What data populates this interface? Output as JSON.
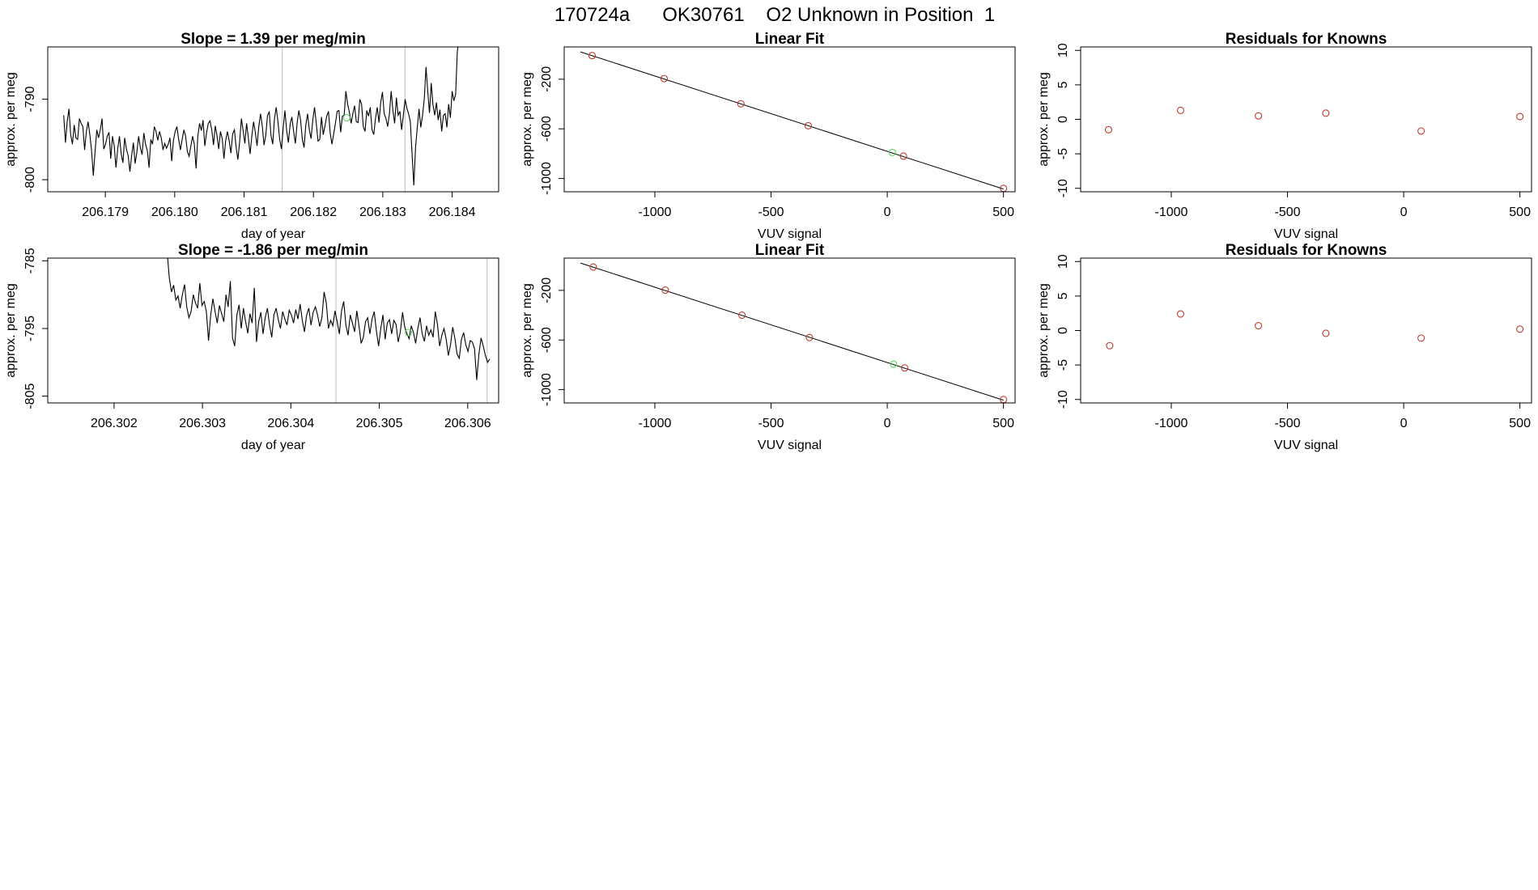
{
  "figure": {
    "title": "170724a      OK30761    O2 Unknown in Position  1"
  },
  "chart_data": [
    {
      "id": "p1",
      "type": "line",
      "title": "Slope =  1.39  per meg/min",
      "xlabel": "day of year",
      "ylabel": "approx. per meg",
      "xlim": [
        206.17817,
        206.18467
      ],
      "ylim": [
        -801.5,
        -783.5
      ],
      "xticks": [
        206.179,
        206.18,
        206.181,
        206.182,
        206.183,
        206.184
      ],
      "xtick_labels": [
        "206.179",
        "206.180",
        "206.181",
        "206.182",
        "206.183",
        "206.184"
      ],
      "yticks": [
        -790,
        -800
      ],
      "ytick_labels": [
        "-790",
        "-800"
      ],
      "series_x0": 206.1784,
      "series_x1": 206.1841,
      "series_y": [
        -792.0,
        -795.4,
        -792.8,
        -791.2,
        -794.4,
        -795.6,
        -793.2,
        -794.8,
        -795.0,
        -792.4,
        -793.0,
        -793.4,
        -796.3,
        -794.0,
        -792.8,
        -794.4,
        -796.4,
        -799.5,
        -796.5,
        -793.8,
        -794.8,
        -793.8,
        -792.4,
        -796.2,
        -795.6,
        -794.6,
        -794.1,
        -797.4,
        -794.6,
        -795.8,
        -798.5,
        -796.2,
        -794.6,
        -796.8,
        -797.9,
        -794.8,
        -796.2,
        -797.0,
        -799.0,
        -797.0,
        -795.4,
        -798.0,
        -796.6,
        -794.6,
        -796.0,
        -796.9,
        -794.2,
        -795.6,
        -796.4,
        -798.5,
        -795.0,
        -795.6,
        -793.4,
        -794.0,
        -795.1,
        -794.0,
        -794.8,
        -796.3,
        -795.5,
        -796.1,
        -795.6,
        -794.8,
        -797.7,
        -795.1,
        -794.0,
        -793.4,
        -795.0,
        -796.3,
        -795.0,
        -793.8,
        -794.6,
        -796.5,
        -797.1,
        -795.8,
        -794.6,
        -795.6,
        -798.6,
        -794.6,
        -793.0,
        -793.9,
        -792.6,
        -795.8,
        -794.2,
        -793.0,
        -792.7,
        -793.8,
        -795.7,
        -793.3,
        -794.5,
        -796.2,
        -794.0,
        -794.9,
        -797.4,
        -795.1,
        -794.0,
        -795.2,
        -796.7,
        -794.3,
        -793.8,
        -796.0,
        -797.5,
        -795.3,
        -792.4,
        -793.9,
        -795.5,
        -793.0,
        -794.8,
        -796.8,
        -794.6,
        -792.8,
        -794.1,
        -795.8,
        -793.4,
        -791.8,
        -793.3,
        -795.7,
        -794.5,
        -792.0,
        -791.6,
        -794.5,
        -795.6,
        -792.4,
        -791.0,
        -792.8,
        -795.0,
        -796.2,
        -793.6,
        -791.4,
        -793.9,
        -795.4,
        -793.1,
        -792.2,
        -794.0,
        -795.5,
        -793.0,
        -791.4,
        -792.6,
        -795.0,
        -796.0,
        -793.2,
        -791.8,
        -793.8,
        -794.9,
        -792.6,
        -791.0,
        -793.0,
        -795.2,
        -795.0,
        -792.2,
        -794.4,
        -793.3,
        -792.1,
        -791.5,
        -794.2,
        -795.6,
        -794.3,
        -793.0,
        -791.5,
        -791.4,
        -794.1,
        -792.1,
        -792.0,
        -789.0,
        -790.6,
        -791.6,
        -793.0,
        -791.8,
        -790.8,
        -792.8,
        -792.9,
        -790.0,
        -790.6,
        -793.4,
        -794.0,
        -791.4,
        -792.1,
        -791.0,
        -793.8,
        -794.4,
        -792.4,
        -791.0,
        -792.9,
        -790.4,
        -789.1,
        -791.8,
        -792.4,
        -793.4,
        -791.8,
        -789.0,
        -791.4,
        -793.0,
        -789.8,
        -792.0,
        -791.5,
        -793.8,
        -792.0,
        -790.0,
        -791.1,
        -791.8,
        -792.8,
        -796.8,
        -800.7,
        -796.0,
        -793.5,
        -791.2,
        -793.5,
        -792.0,
        -790.0,
        -786.0,
        -789.0,
        -791.7,
        -788.0,
        -790.7,
        -792.0,
        -790.4,
        -792.6,
        -791.3,
        -794.0,
        -792.0,
        -791.8,
        -793.5,
        -790.6,
        -792.3,
        -789.0,
        -790.2,
        -789.4,
        -784.0,
        -782.5
      ],
      "vlines": [
        206.18155,
        206.18332
      ],
      "unknown_points": [
        {
          "x": 206.18248,
          "y": -792.3
        }
      ]
    },
    {
      "id": "p2",
      "type": "scatter",
      "title": "Linear Fit",
      "xlabel": "VUV signal",
      "ylabel": "approx. per meg",
      "xlim": [
        -1390,
        550
      ],
      "ylim": [
        -1107,
        60
      ],
      "xticks": [
        -1000,
        -500,
        0,
        500
      ],
      "xtick_labels": [
        "-1000",
        "-500",
        "0",
        "500"
      ],
      "yticks": [
        -200,
        -600,
        -1000
      ],
      "ytick_labels": [
        "-200",
        "-600",
        "-1000"
      ],
      "fit_line": [
        [
          -1320,
          20
        ],
        [
          500,
          -1085
        ]
      ],
      "known_points": [
        {
          "x": -1270,
          "y": -10
        },
        {
          "x": -960,
          "y": -195
        },
        {
          "x": -630,
          "y": -398
        },
        {
          "x": -340,
          "y": -575
        },
        {
          "x": 70,
          "y": -820
        },
        {
          "x": 500,
          "y": -1080
        }
      ],
      "unknown_points": [
        {
          "x": 22,
          "y": -790
        }
      ]
    },
    {
      "id": "p3",
      "type": "scatter",
      "title": "Residuals for Knowns",
      "xlabel": "VUV signal",
      "ylabel": "approx. per meg",
      "xlim": [
        -1390,
        550
      ],
      "ylim": [
        -10.5,
        10.5
      ],
      "xticks": [
        -1000,
        -500,
        0,
        500
      ],
      "xtick_labels": [
        "-1000",
        "-500",
        "0",
        "500"
      ],
      "yticks": [
        10,
        5,
        0,
        -5,
        -10
      ],
      "ytick_labels": [
        "10",
        "5",
        "0",
        "-5",
        "-10"
      ],
      "known_points": [
        {
          "x": -1270,
          "y": -1.5
        },
        {
          "x": -960,
          "y": 1.3
        },
        {
          "x": -625,
          "y": 0.5
        },
        {
          "x": -335,
          "y": 0.9
        },
        {
          "x": 75,
          "y": -1.7
        },
        {
          "x": 500,
          "y": 0.4
        }
      ]
    },
    {
      "id": "p4",
      "type": "line",
      "title": "Slope =  -1.86  per meg/min",
      "xlabel": "day of year",
      "ylabel": "approx. per meg",
      "xlim": [
        206.30125,
        206.30635
      ],
      "ylim": [
        -806,
        -784.6
      ],
      "xticks": [
        206.302,
        206.303,
        206.304,
        206.305,
        206.306
      ],
      "xtick_labels": [
        "206.302",
        "206.303",
        "206.304",
        "206.305",
        "206.306"
      ],
      "yticks": [
        -785,
        -795,
        -805
      ],
      "ytick_labels": [
        "-785",
        "-795",
        "-805"
      ],
      "series_x0": 206.3026,
      "series_x1": 206.30625,
      "series_y": [
        -783.6,
        -787.5,
        -789.6,
        -788.6,
        -790.8,
        -790.2,
        -792.0,
        -790.0,
        -788.5,
        -791.8,
        -793.4,
        -792.5,
        -790.0,
        -791.2,
        -792.0,
        -788.3,
        -791.6,
        -791.0,
        -792.5,
        -796.8,
        -793.0,
        -790.6,
        -792.5,
        -794.2,
        -791.6,
        -792.8,
        -794.0,
        -790.0,
        -791.8,
        -788.0,
        -796.4,
        -797.6,
        -793.0,
        -791.5,
        -795.0,
        -792.0,
        -794.0,
        -795.7,
        -792.8,
        -794.2,
        -789.0,
        -797.0,
        -794.0,
        -792.6,
        -795.8,
        -793.4,
        -792.0,
        -794.5,
        -796.3,
        -793.0,
        -792.0,
        -793.7,
        -795.0,
        -792.5,
        -793.6,
        -794.5,
        -792.3,
        -793.0,
        -794.2,
        -792.2,
        -793.6,
        -791.4,
        -793.8,
        -795.5,
        -793.0,
        -792.0,
        -794.5,
        -792.6,
        -791.8,
        -793.0,
        -794.7,
        -793.4,
        -789.6,
        -791.2,
        -795.0,
        -793.8,
        -794.6,
        -792.4,
        -794.0,
        -795.8,
        -792.4,
        -791.0,
        -794.5,
        -796.0,
        -793.0,
        -794.2,
        -795.5,
        -792.4,
        -794.6,
        -797.2,
        -796.3,
        -794.0,
        -793.4,
        -795.8,
        -793.6,
        -792.5,
        -795.4,
        -797.6,
        -795.0,
        -793.0,
        -796.6,
        -794.2,
        -793.7,
        -795.8,
        -793.8,
        -794.4,
        -797.0,
        -795.4,
        -792.6,
        -794.8,
        -795.8,
        -796.5,
        -794.6,
        -795.6,
        -797.2,
        -795.0,
        -793.4,
        -795.8,
        -796.9,
        -794.6,
        -796.0,
        -795.2,
        -796.3,
        -792.5,
        -794.4,
        -797.6,
        -796.0,
        -795.0,
        -796.6,
        -799.0,
        -797.4,
        -794.8,
        -796.5,
        -798.8,
        -799.4,
        -796.6,
        -795.6,
        -797.4,
        -798.4,
        -796.8,
        -797.0,
        -798.0,
        -802.6,
        -798.8,
        -796.4,
        -797.6,
        -799.0,
        -800.0,
        -799.5
      ],
      "vlines": [
        206.30451,
        206.30622
      ],
      "unknown_points": [
        {
          "x": 206.30533,
          "y": -795.6
        }
      ]
    },
    {
      "id": "p5",
      "type": "scatter",
      "title": "Linear Fit",
      "xlabel": "VUV signal",
      "ylabel": "approx. per meg",
      "xlim": [
        -1390,
        550
      ],
      "ylim": [
        -1107,
        60
      ],
      "xticks": [
        -1000,
        -500,
        0,
        500
      ],
      "xtick_labels": [
        "-1000",
        "-500",
        "0",
        "500"
      ],
      "yticks": [
        -200,
        -600,
        -1000
      ],
      "ytick_labels": [
        "-200",
        "-600",
        "-1000"
      ],
      "fit_line": [
        [
          -1320,
          20
        ],
        [
          500,
          -1085
        ]
      ],
      "known_points": [
        {
          "x": -1265,
          "y": -12
        },
        {
          "x": -955,
          "y": -198
        },
        {
          "x": -625,
          "y": -400
        },
        {
          "x": -335,
          "y": -580
        },
        {
          "x": 75,
          "y": -825
        },
        {
          "x": 500,
          "y": -1080
        }
      ],
      "unknown_points": [
        {
          "x": 27,
          "y": -795
        }
      ]
    },
    {
      "id": "p6",
      "type": "scatter",
      "title": "Residuals for Knowns",
      "xlabel": "VUV signal",
      "ylabel": "approx. per meg",
      "xlim": [
        -1390,
        550
      ],
      "ylim": [
        -10.5,
        10.5
      ],
      "xticks": [
        -1000,
        -500,
        0,
        500
      ],
      "xtick_labels": [
        "-1000",
        "-500",
        "0",
        "500"
      ],
      "yticks": [
        10,
        5,
        0,
        -5,
        -10
      ],
      "ytick_labels": [
        "10",
        "5",
        "0",
        "-5",
        "-10"
      ],
      "known_points": [
        {
          "x": -1265,
          "y": -2.2
        },
        {
          "x": -960,
          "y": 2.4
        },
        {
          "x": -625,
          "y": 0.7
        },
        {
          "x": -335,
          "y": -0.4
        },
        {
          "x": 75,
          "y": -1.1
        },
        {
          "x": 500,
          "y": 0.2
        }
      ]
    }
  ]
}
